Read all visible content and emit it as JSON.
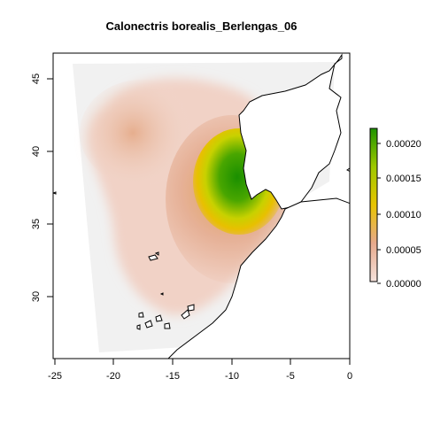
{
  "title": "Calonectris borealis_Berlengas_06",
  "x_ticks": [
    "-25",
    "-20",
    "-15",
    "-10",
    "-5",
    "0"
  ],
  "y_ticks": [
    "30",
    "35",
    "40",
    "45"
  ],
  "legend_ticks": [
    "0.00000",
    "0.00005",
    "0.00010",
    "0.00015",
    "0.00020"
  ],
  "colors": {
    "low": "#f5e2dc",
    "mid_low": "#e2a37a",
    "mid": "#e8c400",
    "high": "#1f9400",
    "mask": "#f1f1f1"
  },
  "chart_data": {
    "type": "heatmap",
    "title": "Calonectris borealis_Berlengas_06",
    "xlim": [
      -25,
      0
    ],
    "ylim": [
      26,
      47
    ],
    "legend_range": [
      0,
      0.00022
    ],
    "legend_ticks": [
      0.0,
      5e-05,
      0.0001,
      0.00015,
      0.0002
    ],
    "peak_location": [
      -10,
      38
    ]
  }
}
